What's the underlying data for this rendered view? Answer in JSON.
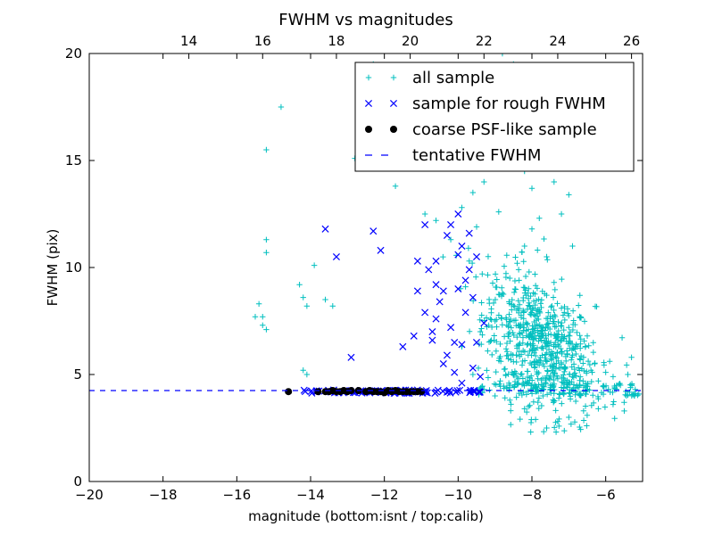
{
  "chart_data": {
    "type": "scatter",
    "title": "FWHM vs magnitudes",
    "xlabel": "magnitude (bottom:isnt / top:calib)",
    "ylabel": "FWHM (pix)",
    "xlim": [
      -20,
      -5
    ],
    "ylim": [
      0,
      20
    ],
    "top_axis": {
      "offset": 31.3,
      "ticks": [
        14,
        16,
        18,
        20,
        22,
        24,
        26
      ]
    },
    "x_ticks": [
      -20,
      -18,
      -16,
      -14,
      -12,
      -10,
      -8,
      -6
    ],
    "x_tick_labels": [
      "−20",
      "−18",
      "−16",
      "−14",
      "−12",
      "−10",
      "−8",
      "−6"
    ],
    "y_ticks": [
      0,
      5,
      10,
      15,
      20
    ],
    "y_tick_labels": [
      "0",
      "5",
      "10",
      "15",
      "20"
    ],
    "grid": false,
    "legend": {
      "location": "upper-right",
      "entries": [
        "all sample",
        "sample for rough FWHM",
        "coarse PSF-like sample",
        "tentative FWHM"
      ]
    },
    "colors": {
      "all_sample": "#00bfbf",
      "rough": "#0000ff",
      "psf": "#000000",
      "tentative": "#0000ff"
    },
    "series": [
      {
        "name": "all sample",
        "marker": "plus",
        "points": [
          [
            -14.8,
            17.5
          ],
          [
            -15.2,
            15.5
          ],
          [
            -15.2,
            11.3
          ],
          [
            -15.2,
            10.7
          ],
          [
            -15.4,
            8.3
          ],
          [
            -15.3,
            7.7
          ],
          [
            -15.5,
            7.7
          ],
          [
            -15.3,
            7.3
          ],
          [
            -15.2,
            7.1
          ],
          [
            -14.3,
            9.2
          ],
          [
            -14.2,
            8.6
          ],
          [
            -14.1,
            8.2
          ],
          [
            -14.2,
            5.2
          ],
          [
            -14.1,
            5.0
          ],
          [
            -13.9,
            10.1
          ],
          [
            -13.6,
            8.5
          ],
          [
            -13.4,
            8.2
          ],
          [
            -12.8,
            15.1
          ],
          [
            -12.3,
            19.5
          ],
          [
            -11.7,
            13.8
          ],
          [
            -11.2,
            15.3
          ],
          [
            -10.9,
            12.5
          ],
          [
            -10.6,
            12.2
          ],
          [
            -10.2,
            11.3
          ],
          [
            -10.0,
            15.1
          ],
          [
            -9.9,
            12.8
          ],
          [
            -9.6,
            13.5
          ],
          [
            -9.3,
            14.0
          ],
          [
            -9.0,
            16.5
          ],
          [
            -8.8,
            20.0
          ],
          [
            -8.5,
            19.5
          ],
          [
            -8.3,
            15.0
          ],
          [
            -8.2,
            14.5
          ],
          [
            -8.0,
            13.7
          ],
          [
            -7.8,
            15.5
          ],
          [
            -7.6,
            16.0
          ],
          [
            -7.4,
            14.0
          ],
          [
            -7.2,
            12.5
          ],
          [
            -7.0,
            13.4
          ],
          [
            -6.9,
            11.0
          ],
          [
            -6.7,
            8.7
          ],
          [
            -6.5,
            6.8
          ],
          [
            -6.3,
            5.5
          ],
          [
            -6.0,
            5.1
          ],
          [
            -5.8,
            4.9
          ],
          [
            -5.6,
            4.5
          ],
          [
            -5.4,
            5.0
          ],
          [
            -5.3,
            5.8
          ],
          [
            -5.2,
            4.3
          ],
          [
            -5.5,
            3.7
          ],
          [
            -5.8,
            3.6
          ],
          [
            -6.2,
            3.4
          ],
          [
            -6.6,
            3.3
          ],
          [
            -7.0,
            3.0
          ],
          [
            -7.3,
            2.8
          ],
          [
            -7.6,
            2.5
          ],
          [
            -7.9,
            2.9
          ],
          [
            -8.2,
            3.4
          ],
          [
            -8.6,
            3.8
          ],
          [
            -9.0,
            4.0
          ],
          [
            -9.3,
            4.3
          ],
          [
            -9.6,
            5.0
          ],
          [
            -9.2,
            6.1
          ],
          [
            -9.0,
            7.5
          ],
          [
            -8.8,
            8.8
          ],
          [
            -8.6,
            9.5
          ],
          [
            -8.4,
            10.2
          ],
          [
            -8.2,
            11.0
          ],
          [
            -8.0,
            11.8
          ],
          [
            -7.8,
            12.3
          ],
          [
            -7.6,
            10.5
          ],
          [
            -7.4,
            9.3
          ],
          [
            -7.2,
            8.1
          ],
          [
            -7.0,
            7.2
          ],
          [
            -6.8,
            6.4
          ],
          [
            -6.6,
            5.8
          ],
          [
            -6.4,
            5.2
          ],
          [
            -6.2,
            4.7
          ],
          [
            -8.7,
            6.2
          ],
          [
            -8.5,
            5.6
          ],
          [
            -8.3,
            5.0
          ],
          [
            -8.1,
            4.6
          ],
          [
            -7.9,
            4.2
          ],
          [
            -7.7,
            4.0
          ],
          [
            -7.5,
            4.4
          ],
          [
            -7.3,
            4.8
          ],
          [
            -7.1,
            5.3
          ],
          [
            -6.9,
            5.9
          ],
          [
            -9.4,
            7.0
          ],
          [
            -9.1,
            6.6
          ],
          [
            -8.9,
            12.6
          ],
          [
            -9.5,
            11.9
          ],
          [
            -9.7,
            10.3
          ],
          [
            -9.8,
            9.1
          ],
          [
            -9.9,
            6.3
          ]
        ],
        "cloud": {
          "center": [
            -7.8,
            6.3
          ],
          "spread": [
            0.75,
            1.6
          ],
          "count": 650
        }
      },
      {
        "name": "sample for rough FWHM",
        "marker": "x",
        "points": [
          [
            -13.6,
            11.8
          ],
          [
            -13.3,
            10.5
          ],
          [
            -12.9,
            5.8
          ],
          [
            -12.3,
            11.7
          ],
          [
            -12.1,
            10.8
          ],
          [
            -11.5,
            6.3
          ],
          [
            -11.2,
            6.8
          ],
          [
            -11.1,
            8.9
          ],
          [
            -11.1,
            10.3
          ],
          [
            -10.9,
            12.0
          ],
          [
            -10.8,
            9.9
          ],
          [
            -10.7,
            7.0
          ],
          [
            -10.6,
            7.6
          ],
          [
            -10.6,
            10.3
          ],
          [
            -10.4,
            5.5
          ],
          [
            -10.4,
            8.9
          ],
          [
            -10.3,
            11.5
          ],
          [
            -10.2,
            7.2
          ],
          [
            -10.1,
            5.1
          ],
          [
            -10.1,
            6.5
          ],
          [
            -10.0,
            10.6
          ],
          [
            -10.0,
            12.5
          ],
          [
            -9.9,
            6.4
          ],
          [
            -9.8,
            7.9
          ],
          [
            -9.8,
            9.4
          ],
          [
            -9.7,
            11.6
          ],
          [
            -9.6,
            5.3
          ],
          [
            -9.6,
            8.6
          ],
          [
            -9.5,
            6.5
          ],
          [
            -9.5,
            10.5
          ],
          [
            -9.4,
            4.9
          ],
          [
            -9.3,
            7.4
          ],
          [
            -10.6,
            9.2
          ],
          [
            -10.9,
            7.9
          ],
          [
            -10.2,
            12.0
          ],
          [
            -9.9,
            11.0
          ],
          [
            -9.7,
            9.9
          ],
          [
            -10.5,
            8.4
          ],
          [
            -10.0,
            9.0
          ],
          [
            -9.9,
            4.6
          ],
          [
            -10.3,
            5.9
          ],
          [
            -10.7,
            6.6
          ]
        ],
        "baseline": {
          "y": 4.2,
          "from": -14.3,
          "to": -9.3,
          "count": 95
        }
      },
      {
        "name": "coarse PSF-like sample",
        "marker": "circle",
        "points": [
          [
            -14.6,
            4.2
          ],
          [
            -13.8,
            4.2
          ],
          [
            -13.6,
            4.2
          ],
          [
            -13.5,
            4.2
          ],
          [
            -13.4,
            4.25
          ],
          [
            -13.3,
            4.2
          ],
          [
            -13.2,
            4.2
          ],
          [
            -13.1,
            4.25
          ],
          [
            -13.0,
            4.2
          ],
          [
            -12.9,
            4.25
          ],
          [
            -12.7,
            4.25
          ],
          [
            -12.5,
            4.2
          ],
          [
            -12.4,
            4.25
          ],
          [
            -12.3,
            4.2
          ],
          [
            -12.2,
            4.2
          ],
          [
            -12.1,
            4.2
          ],
          [
            -12.0,
            4.15
          ],
          [
            -11.9,
            4.25
          ],
          [
            -11.8,
            4.2
          ],
          [
            -11.7,
            4.25
          ],
          [
            -11.6,
            4.2
          ],
          [
            -11.5,
            4.2
          ],
          [
            -11.4,
            4.2
          ],
          [
            -11.3,
            4.2
          ],
          [
            -11.2,
            4.2
          ],
          [
            -11.1,
            4.2
          ],
          [
            -11.0,
            4.2
          ]
        ]
      },
      {
        "name": "tentative FWHM",
        "marker": "dashed-line",
        "y": 4.25
      }
    ]
  }
}
